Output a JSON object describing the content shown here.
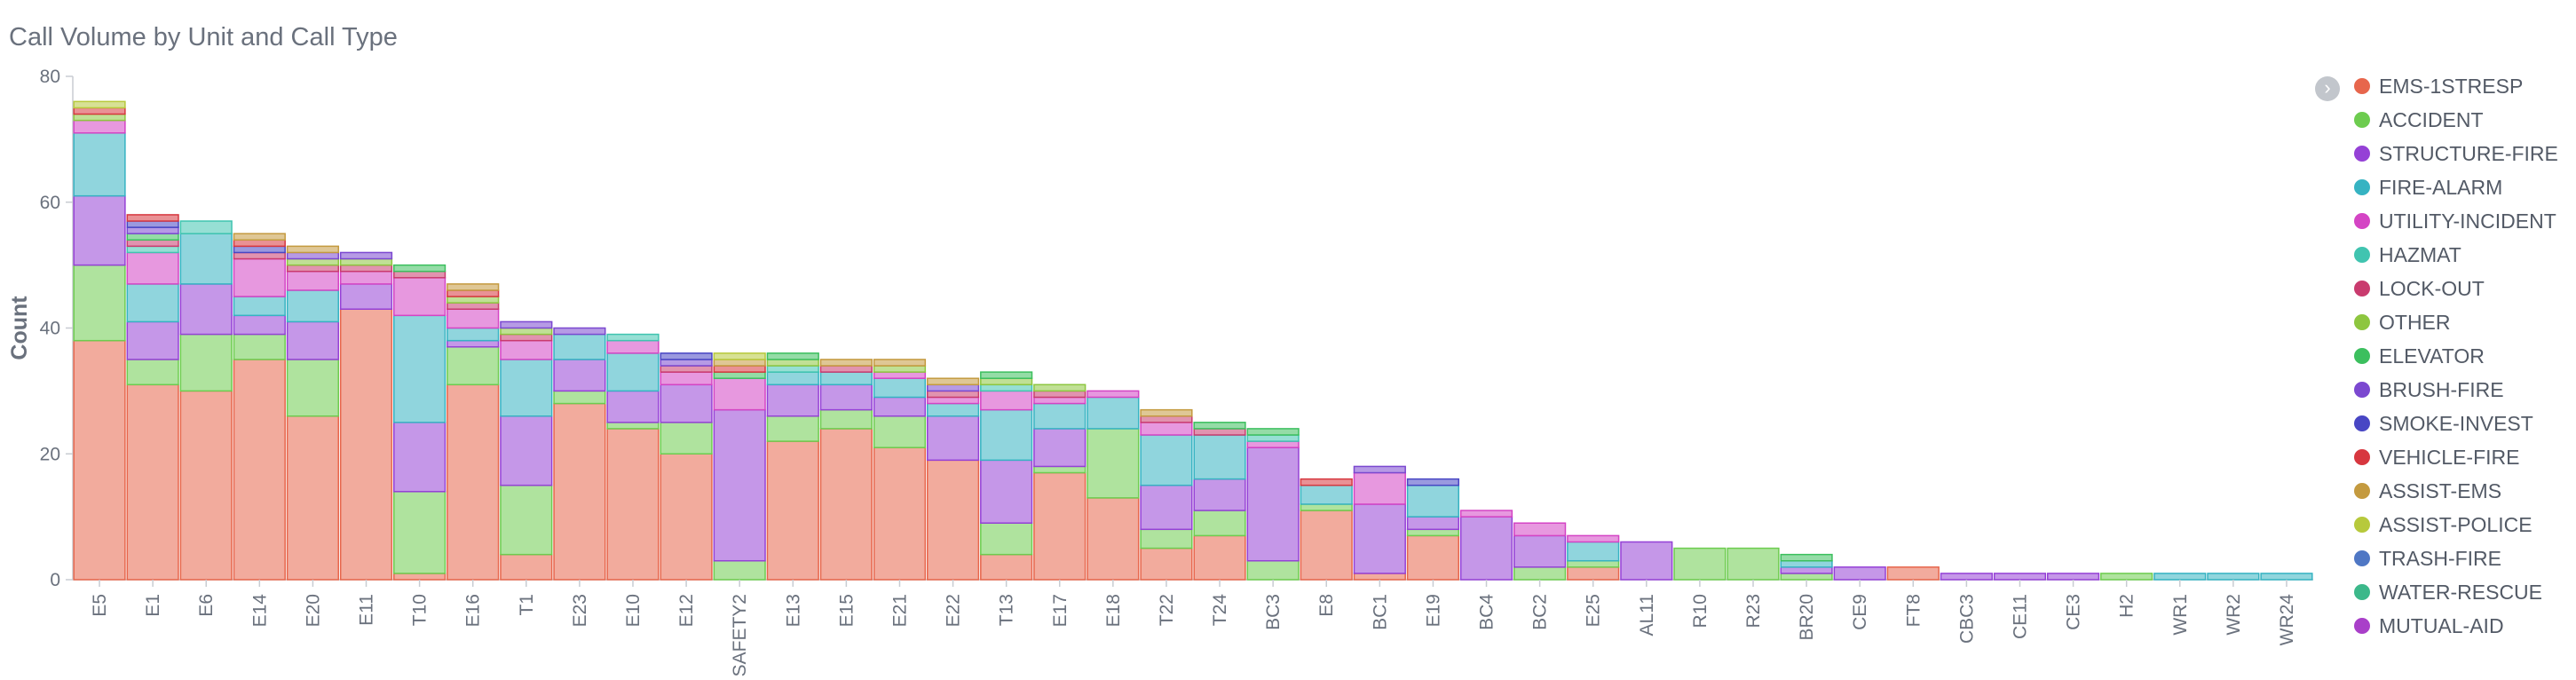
{
  "chart_data": {
    "type": "bar",
    "stacked": true,
    "title": "Call Volume by Unit and Call Type",
    "xlabel": "",
    "ylabel": "Count",
    "ylim": [
      0,
      80
    ],
    "yticks": [
      0,
      20,
      40,
      60,
      80
    ],
    "legend_position": "right",
    "categories": [
      "E5",
      "E1",
      "E6",
      "E14",
      "E20",
      "E11",
      "T10",
      "E16",
      "T1",
      "E23",
      "E10",
      "E12",
      "SAFETY2",
      "E13",
      "E15",
      "E21",
      "E22",
      "T13",
      "E17",
      "E18",
      "T22",
      "T24",
      "BC3",
      "E8",
      "BC1",
      "E19",
      "BC4",
      "BC2",
      "E25",
      "AL11",
      "R10",
      "R23",
      "BR20",
      "CE9",
      "FT8",
      "CBC3",
      "CE11",
      "CE3",
      "H2",
      "WR1",
      "WR2",
      "WR24"
    ],
    "series": [
      {
        "name": "EMS-1STRESP",
        "color": "#e7664c",
        "values": [
          38,
          31,
          30,
          35,
          26,
          43,
          1,
          31,
          4,
          28,
          24,
          20,
          0,
          22,
          24,
          21,
          19,
          4,
          17,
          13,
          5,
          7,
          0,
          11,
          1,
          7,
          0,
          0,
          2,
          0,
          0,
          0,
          0,
          0,
          2,
          0,
          0,
          0,
          0,
          0,
          0,
          0
        ]
      },
      {
        "name": "ACCIDENT",
        "color": "#6dcc4f",
        "values": [
          12,
          4,
          9,
          4,
          9,
          0,
          13,
          6,
          11,
          2,
          1,
          5,
          3,
          4,
          3,
          5,
          0,
          5,
          1,
          11,
          3,
          4,
          3,
          1,
          0,
          1,
          0,
          2,
          1,
          0,
          5,
          5,
          1,
          0,
          0,
          0,
          0,
          0,
          1,
          0,
          0,
          0
        ]
      },
      {
        "name": "STRUCTURE-FIRE",
        "color": "#9541d6",
        "values": [
          11,
          6,
          8,
          3,
          6,
          4,
          11,
          1,
          11,
          5,
          5,
          6,
          24,
          5,
          4,
          3,
          7,
          10,
          6,
          0,
          7,
          5,
          18,
          0,
          11,
          2,
          10,
          5,
          0,
          6,
          0,
          0,
          1,
          2,
          0,
          1,
          1,
          1,
          0,
          0,
          0,
          0
        ]
      },
      {
        "name": "FIRE-ALARM",
        "color": "#36b3c2",
        "values": [
          10,
          6,
          8,
          3,
          5,
          0,
          17,
          2,
          9,
          4,
          6,
          0,
          0,
          2,
          2,
          3,
          2,
          8,
          4,
          5,
          8,
          7,
          0,
          3,
          0,
          5,
          0,
          0,
          3,
          0,
          0,
          0,
          1,
          0,
          0,
          0,
          0,
          0,
          0,
          1,
          1,
          1
        ]
      },
      {
        "name": "UTILITY-INCIDENT",
        "color": "#d444c4",
        "values": [
          2,
          5,
          0,
          6,
          3,
          2,
          6,
          3,
          3,
          0,
          2,
          2,
          5,
          0,
          0,
          1,
          1,
          3,
          1,
          1,
          2,
          0,
          1,
          0,
          5,
          0,
          1,
          2,
          1,
          0,
          0,
          0,
          0,
          0,
          0,
          0,
          0,
          0,
          0,
          0,
          0,
          0
        ]
      },
      {
        "name": "HAZMAT",
        "color": "#40c4b0",
        "values": [
          0,
          1,
          2,
          0,
          0,
          0,
          0,
          0,
          0,
          0,
          1,
          0,
          0,
          1,
          0,
          0,
          0,
          1,
          0,
          0,
          0,
          0,
          1,
          0,
          0,
          0,
          0,
          0,
          0,
          0,
          0,
          0,
          0,
          0,
          0,
          0,
          0,
          0,
          0,
          0,
          0,
          0
        ]
      },
      {
        "name": "LOCK-OUT",
        "color": "#c93b6e",
        "values": [
          0,
          1,
          0,
          1,
          1,
          1,
          1,
          1,
          1,
          0,
          0,
          1,
          0,
          0,
          1,
          0,
          1,
          0,
          1,
          0,
          1,
          1,
          0,
          0,
          0,
          0,
          0,
          0,
          0,
          0,
          0,
          0,
          0,
          0,
          0,
          0,
          0,
          0,
          0,
          0,
          0,
          0
        ]
      },
      {
        "name": "OTHER",
        "color": "#8dc63f",
        "values": [
          1,
          0,
          0,
          0,
          1,
          1,
          0,
          1,
          1,
          0,
          0,
          0,
          0,
          1,
          0,
          1,
          0,
          1,
          1,
          0,
          0,
          0,
          0,
          0,
          0,
          0,
          0,
          0,
          0,
          0,
          0,
          0,
          0,
          0,
          0,
          0,
          0,
          0,
          0,
          0,
          0,
          0
        ]
      },
      {
        "name": "ELEVATOR",
        "color": "#3cbf5e",
        "values": [
          0,
          1,
          0,
          0,
          0,
          0,
          1,
          0,
          0,
          0,
          0,
          0,
          1,
          1,
          0,
          0,
          0,
          1,
          0,
          0,
          0,
          1,
          1,
          0,
          0,
          0,
          0,
          0,
          0,
          0,
          0,
          0,
          1,
          0,
          0,
          0,
          0,
          0,
          0,
          0,
          0,
          0
        ]
      },
      {
        "name": "BRUSH-FIRE",
        "color": "#7b48d0",
        "values": [
          0,
          1,
          0,
          0,
          1,
          1,
          0,
          0,
          1,
          1,
          0,
          1,
          0,
          0,
          0,
          0,
          1,
          0,
          0,
          0,
          0,
          0,
          0,
          0,
          1,
          0,
          0,
          0,
          0,
          0,
          0,
          0,
          0,
          0,
          0,
          0,
          0,
          0,
          0,
          0,
          0,
          0
        ]
      },
      {
        "name": "SMOKE-INVEST",
        "color": "#4846c4",
        "values": [
          0,
          1,
          0,
          1,
          0,
          0,
          0,
          0,
          0,
          0,
          0,
          1,
          0,
          0,
          0,
          0,
          0,
          0,
          0,
          0,
          0,
          0,
          0,
          0,
          0,
          1,
          0,
          0,
          0,
          0,
          0,
          0,
          0,
          0,
          0,
          0,
          0,
          0,
          0,
          0,
          0,
          0
        ]
      },
      {
        "name": "VEHICLE-FIRE",
        "color": "#d7373f",
        "values": [
          1,
          1,
          0,
          1,
          0,
          0,
          0,
          1,
          0,
          0,
          0,
          0,
          1,
          0,
          0,
          0,
          0,
          0,
          0,
          0,
          0,
          0,
          0,
          1,
          0,
          0,
          0,
          0,
          0,
          0,
          0,
          0,
          0,
          0,
          0,
          0,
          0,
          0,
          0,
          0,
          0,
          0
        ]
      },
      {
        "name": "ASSIST-EMS",
        "color": "#c49a3f",
        "values": [
          0,
          0,
          0,
          1,
          1,
          0,
          0,
          1,
          0,
          0,
          0,
          0,
          1,
          0,
          1,
          1,
          1,
          0,
          0,
          0,
          1,
          0,
          0,
          0,
          0,
          0,
          0,
          0,
          0,
          0,
          0,
          0,
          0,
          0,
          0,
          0,
          0,
          0,
          0,
          0,
          0,
          0
        ]
      },
      {
        "name": "ASSIST-POLICE",
        "color": "#b7c93c",
        "values": [
          1,
          0,
          0,
          0,
          0,
          0,
          0,
          0,
          0,
          0,
          0,
          0,
          1,
          0,
          0,
          0,
          0,
          0,
          0,
          0,
          0,
          0,
          0,
          0,
          0,
          0,
          0,
          0,
          0,
          0,
          0,
          0,
          0,
          0,
          0,
          0,
          0,
          0,
          0,
          0,
          0,
          0
        ]
      },
      {
        "name": "TRASH-FIRE",
        "color": "#4f77c4",
        "values": [
          0,
          0,
          0,
          0,
          0,
          0,
          0,
          0,
          0,
          0,
          0,
          0,
          0,
          0,
          0,
          0,
          0,
          0,
          0,
          0,
          0,
          0,
          0,
          0,
          0,
          0,
          0,
          0,
          0,
          0,
          0,
          0,
          0,
          0,
          0,
          0,
          0,
          0,
          0,
          0,
          0,
          0
        ]
      },
      {
        "name": "WATER-RESCUE",
        "color": "#3cb88a",
        "values": [
          0,
          0,
          0,
          0,
          0,
          0,
          0,
          0,
          0,
          0,
          0,
          0,
          0,
          0,
          0,
          0,
          0,
          0,
          0,
          0,
          0,
          0,
          0,
          0,
          0,
          0,
          0,
          0,
          0,
          0,
          0,
          0,
          0,
          0,
          0,
          0,
          0,
          0,
          0,
          0,
          0,
          0
        ]
      },
      {
        "name": "MUTUAL-AID",
        "color": "#a93fc9",
        "values": [
          0,
          0,
          0,
          0,
          0,
          0,
          0,
          0,
          0,
          0,
          0,
          0,
          0,
          0,
          0,
          0,
          0,
          0,
          0,
          0,
          0,
          0,
          0,
          0,
          0,
          0,
          0,
          0,
          0,
          0,
          0,
          0,
          0,
          0,
          0,
          0,
          0,
          0,
          0,
          0,
          0,
          0
        ]
      }
    ]
  },
  "legend": {
    "toggle_icon": "chevron-right-icon",
    "toggle_glyph": "›"
  }
}
